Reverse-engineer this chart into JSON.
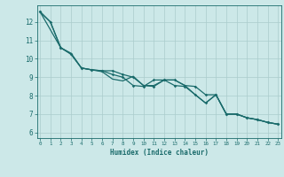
{
  "xlabel": "Humidex (Indice chaleur)",
  "background_color": "#cce8e8",
  "grid_color": "#aacccc",
  "line_color": "#1a6b6b",
  "x_ticks": [
    0,
    1,
    2,
    3,
    4,
    5,
    6,
    7,
    8,
    9,
    10,
    11,
    12,
    13,
    14,
    15,
    16,
    17,
    18,
    19,
    20,
    21,
    22,
    23
  ],
  "y_ticks": [
    6,
    7,
    8,
    9,
    10,
    11,
    12
  ],
  "xlim": [
    -0.3,
    23.3
  ],
  "ylim": [
    5.7,
    12.9
  ],
  "series1_x": [
    0,
    1,
    2,
    3,
    4,
    5,
    6,
    7,
    8,
    9,
    10,
    11,
    12,
    13,
    14,
    15,
    16,
    17,
    18,
    19,
    20,
    21,
    22,
    23
  ],
  "series1_y": [
    12.55,
    12.0,
    10.6,
    10.3,
    9.5,
    9.4,
    9.3,
    8.9,
    8.8,
    9.05,
    8.55,
    8.55,
    8.85,
    8.85,
    8.55,
    8.05,
    7.6,
    8.05,
    7.0,
    7.0,
    6.8,
    6.7,
    6.55,
    6.45
  ],
  "series2_x": [
    0,
    2,
    3,
    4,
    5,
    6,
    7,
    8,
    9,
    10,
    11,
    12,
    13,
    14,
    15,
    16,
    17,
    18,
    19,
    20,
    21,
    22,
    23
  ],
  "series2_y": [
    12.55,
    10.6,
    10.25,
    9.5,
    9.4,
    9.35,
    9.35,
    9.15,
    9.0,
    8.55,
    8.5,
    8.85,
    8.85,
    8.55,
    8.5,
    8.05,
    8.05,
    7.0,
    7.0,
    6.8,
    6.7,
    6.55,
    6.45
  ],
  "series3_x": [
    0,
    1,
    2,
    3,
    4,
    5,
    6,
    7,
    8,
    9,
    10,
    11,
    12,
    13,
    14,
    15,
    16,
    17,
    18,
    19,
    20,
    21,
    22,
    23
  ],
  "series3_y": [
    12.55,
    12.0,
    10.6,
    10.25,
    9.5,
    9.4,
    9.35,
    9.15,
    9.0,
    8.55,
    8.5,
    8.85,
    8.85,
    8.55,
    8.5,
    8.05,
    7.6,
    8.05,
    7.0,
    7.0,
    6.8,
    6.7,
    6.55,
    6.45
  ]
}
